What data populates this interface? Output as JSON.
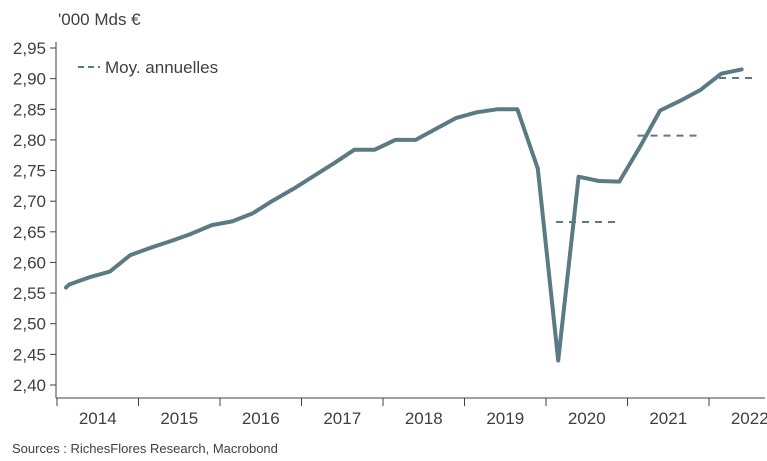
{
  "unit_label": "'000 Mds €",
  "source": "Sources : RichesFlores Research, Macrobond",
  "chart_data": {
    "type": "line",
    "title": "",
    "xlabel": "",
    "ylabel": "'000 Mds €",
    "ylim": [
      2.4,
      2.95
    ],
    "yticks": [
      "2,40",
      "2,45",
      "2,50",
      "2,55",
      "2,60",
      "2,65",
      "2,70",
      "2,75",
      "2,80",
      "2,85",
      "2,90",
      "2,95"
    ],
    "x_categories": [
      "2014",
      "2015",
      "2016",
      "2017",
      "2018",
      "2019",
      "2020",
      "2021",
      "2022"
    ],
    "grid": false,
    "legend": {
      "position": "top-left",
      "entries": [
        "Moy. annuelles"
      ]
    },
    "colors": {
      "series": "#5b7a84",
      "axis": "#404040"
    },
    "series": [
      {
        "style": "solid",
        "x": [
          "2013Q4",
          "2014Q1",
          "2014Q2",
          "2014Q3",
          "2014Q4",
          "2015Q1",
          "2015Q2",
          "2015Q3",
          "2015Q4",
          "2016Q1",
          "2016Q2",
          "2016Q3",
          "2016Q4",
          "2017Q1",
          "2017Q2",
          "2017Q3",
          "2017Q4",
          "2018Q1",
          "2018Q2",
          "2018Q3",
          "2018Q4",
          "2019Q1",
          "2019Q2",
          "2019Q3",
          "2019Q4",
          "2020Q1",
          "2020Q2",
          "2020Q3",
          "2020Q4",
          "2021Q1",
          "2021Q2",
          "2021Q3",
          "2021Q4",
          "2022Q1",
          "2022Q2"
        ],
        "values": [
          2.559,
          2.564,
          2.576,
          2.585,
          2.612,
          2.624,
          2.635,
          2.647,
          2.661,
          2.667,
          2.68,
          2.701,
          2.72,
          2.741,
          2.762,
          2.784,
          2.784,
          2.8,
          2.8,
          2.818,
          2.836,
          2.845,
          2.85,
          2.85,
          2.753,
          2.44,
          2.74,
          2.733,
          2.732,
          2.788,
          2.848,
          2.864,
          2.882,
          2.908,
          2.915
        ]
      },
      {
        "name": "Moy. annuelles",
        "style": "dashed",
        "segments": [
          {
            "year": "2020",
            "value": 2.666
          },
          {
            "year": "2021",
            "value": 2.807
          },
          {
            "year": "2022",
            "value": 2.901
          }
        ]
      }
    ]
  }
}
